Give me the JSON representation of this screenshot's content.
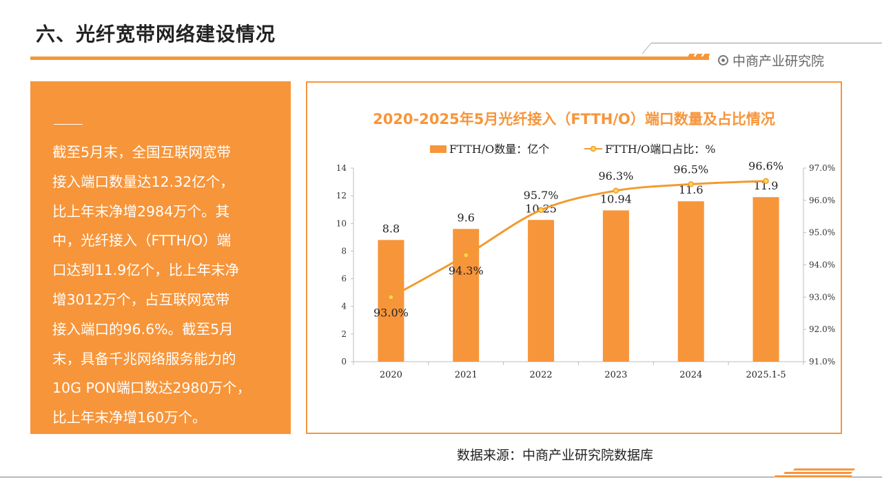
{
  "header": {
    "title": "六、光纤宽带网络建设情况",
    "brand": "中商产业研究院"
  },
  "text_panel": {
    "paragraph": "截至5月末，全国互联网宽带接入端口数量达12.32亿个，比上年末净增2984万个。其中，光纤接入（FTTH/O）端口达到11.9亿个，比上年末净增3012万个，占互联网宽带接入端口的96.6%。截至5月末，具备千兆网络服务能力的10G PON端口数达2980万个，比上年末净增160万个。",
    "lines": [
      "截至5月末，全国互联网宽带",
      "接入端口数量达12.32亿个，",
      "比上年末净增2984万个。其",
      "中，光纤接入（FTTH/O）端",
      "口达到11.9亿个，比上年末净",
      "增3012万个，占互联网宽带",
      "接入端口的96.6%。截至5月",
      "末，具备千兆网络服务能力的",
      "10G PON端口数达2980万个，",
      "比上年末净增160万个。"
    ]
  },
  "source": "数据来源：中商产业研究院数据库",
  "colors": {
    "accent": "#f7953a",
    "line": "#f29a2e",
    "marker_fill": "#ffd84d"
  },
  "chart_data": {
    "type": "bar",
    "title": "2020-2025年5月光纤接入（FTTH/O）端口数量及占比情况",
    "categories": [
      "2020",
      "2021",
      "2022",
      "2023",
      "2024",
      "2025.1-5"
    ],
    "series": [
      {
        "name": "FTTH/O数量：亿个",
        "type": "bar",
        "axis": "left",
        "values": [
          8.8,
          9.6,
          10.25,
          10.94,
          11.6,
          11.9
        ],
        "labels": [
          "8.8",
          "9.6",
          "10.25",
          "10.94",
          "11.6",
          "11.9"
        ]
      },
      {
        "name": "FTTH/O端口占比：%",
        "type": "line",
        "axis": "right",
        "values": [
          93.0,
          94.3,
          95.7,
          96.3,
          96.5,
          96.6
        ],
        "labels": [
          "93.0%",
          "94.3%",
          "95.7%",
          "96.3%",
          "96.5%",
          "96.6%"
        ]
      }
    ],
    "y_left": {
      "min": 0,
      "max": 14,
      "ticks": [
        "0",
        "2",
        "4",
        "6",
        "8",
        "10",
        "12",
        "14"
      ]
    },
    "y_right": {
      "min": 91,
      "max": 97,
      "ticks": [
        "91.0%",
        "92.0%",
        "93.0%",
        "94.0%",
        "95.0%",
        "96.0%",
        "97.0%"
      ]
    },
    "legend_position": "top-center",
    "grid": false
  }
}
